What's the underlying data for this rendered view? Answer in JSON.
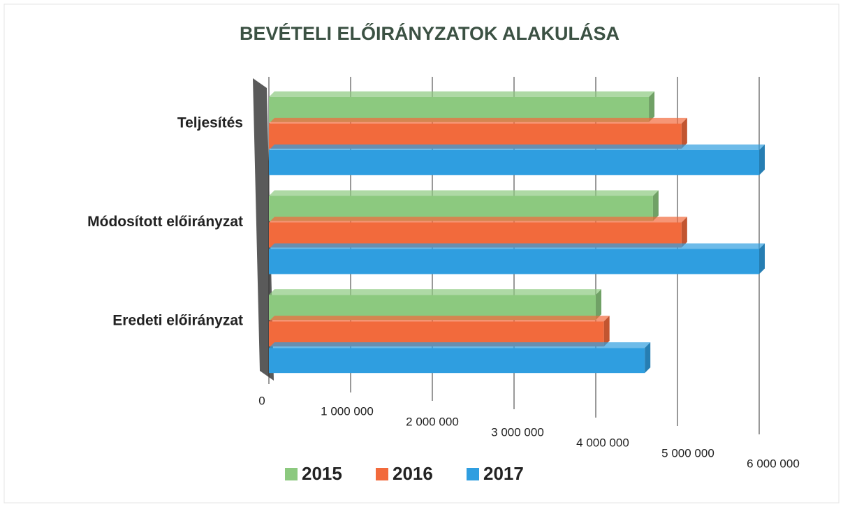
{
  "chart_data": {
    "type": "bar",
    "orientation": "horizontal",
    "title": "BEVÉTELI ELŐIRÁNYZATOK ALAKULÁSA",
    "categories": [
      "Eredeti előirányzat",
      "Módosított előirányzat",
      "Teljesítés"
    ],
    "series": [
      {
        "name": "2015",
        "color": "#8cc97f",
        "values": [
          4000000,
          4700000,
          4650000
        ]
      },
      {
        "name": "2016",
        "color": "#f26a3c",
        "values": [
          4100000,
          5050000,
          5050000
        ]
      },
      {
        "name": "2017",
        "color": "#2f9ee0",
        "values": [
          4600000,
          6000000,
          6000000
        ]
      }
    ],
    "xlim": [
      0,
      6000000
    ],
    "xticks": [
      0,
      {
        "value": 1000000,
        "label": "1 000 000"
      },
      {
        "value": 2000000,
        "label": "2 000 000"
      },
      {
        "value": 3000000,
        "label": "3 000 000"
      },
      {
        "value": 4000000,
        "label": "4 000 000"
      },
      {
        "value": 5000000,
        "label": "5 000 000"
      },
      {
        "value": 6000000,
        "label": "6 000 000"
      }
    ],
    "grid": true,
    "legend": "bottom"
  }
}
